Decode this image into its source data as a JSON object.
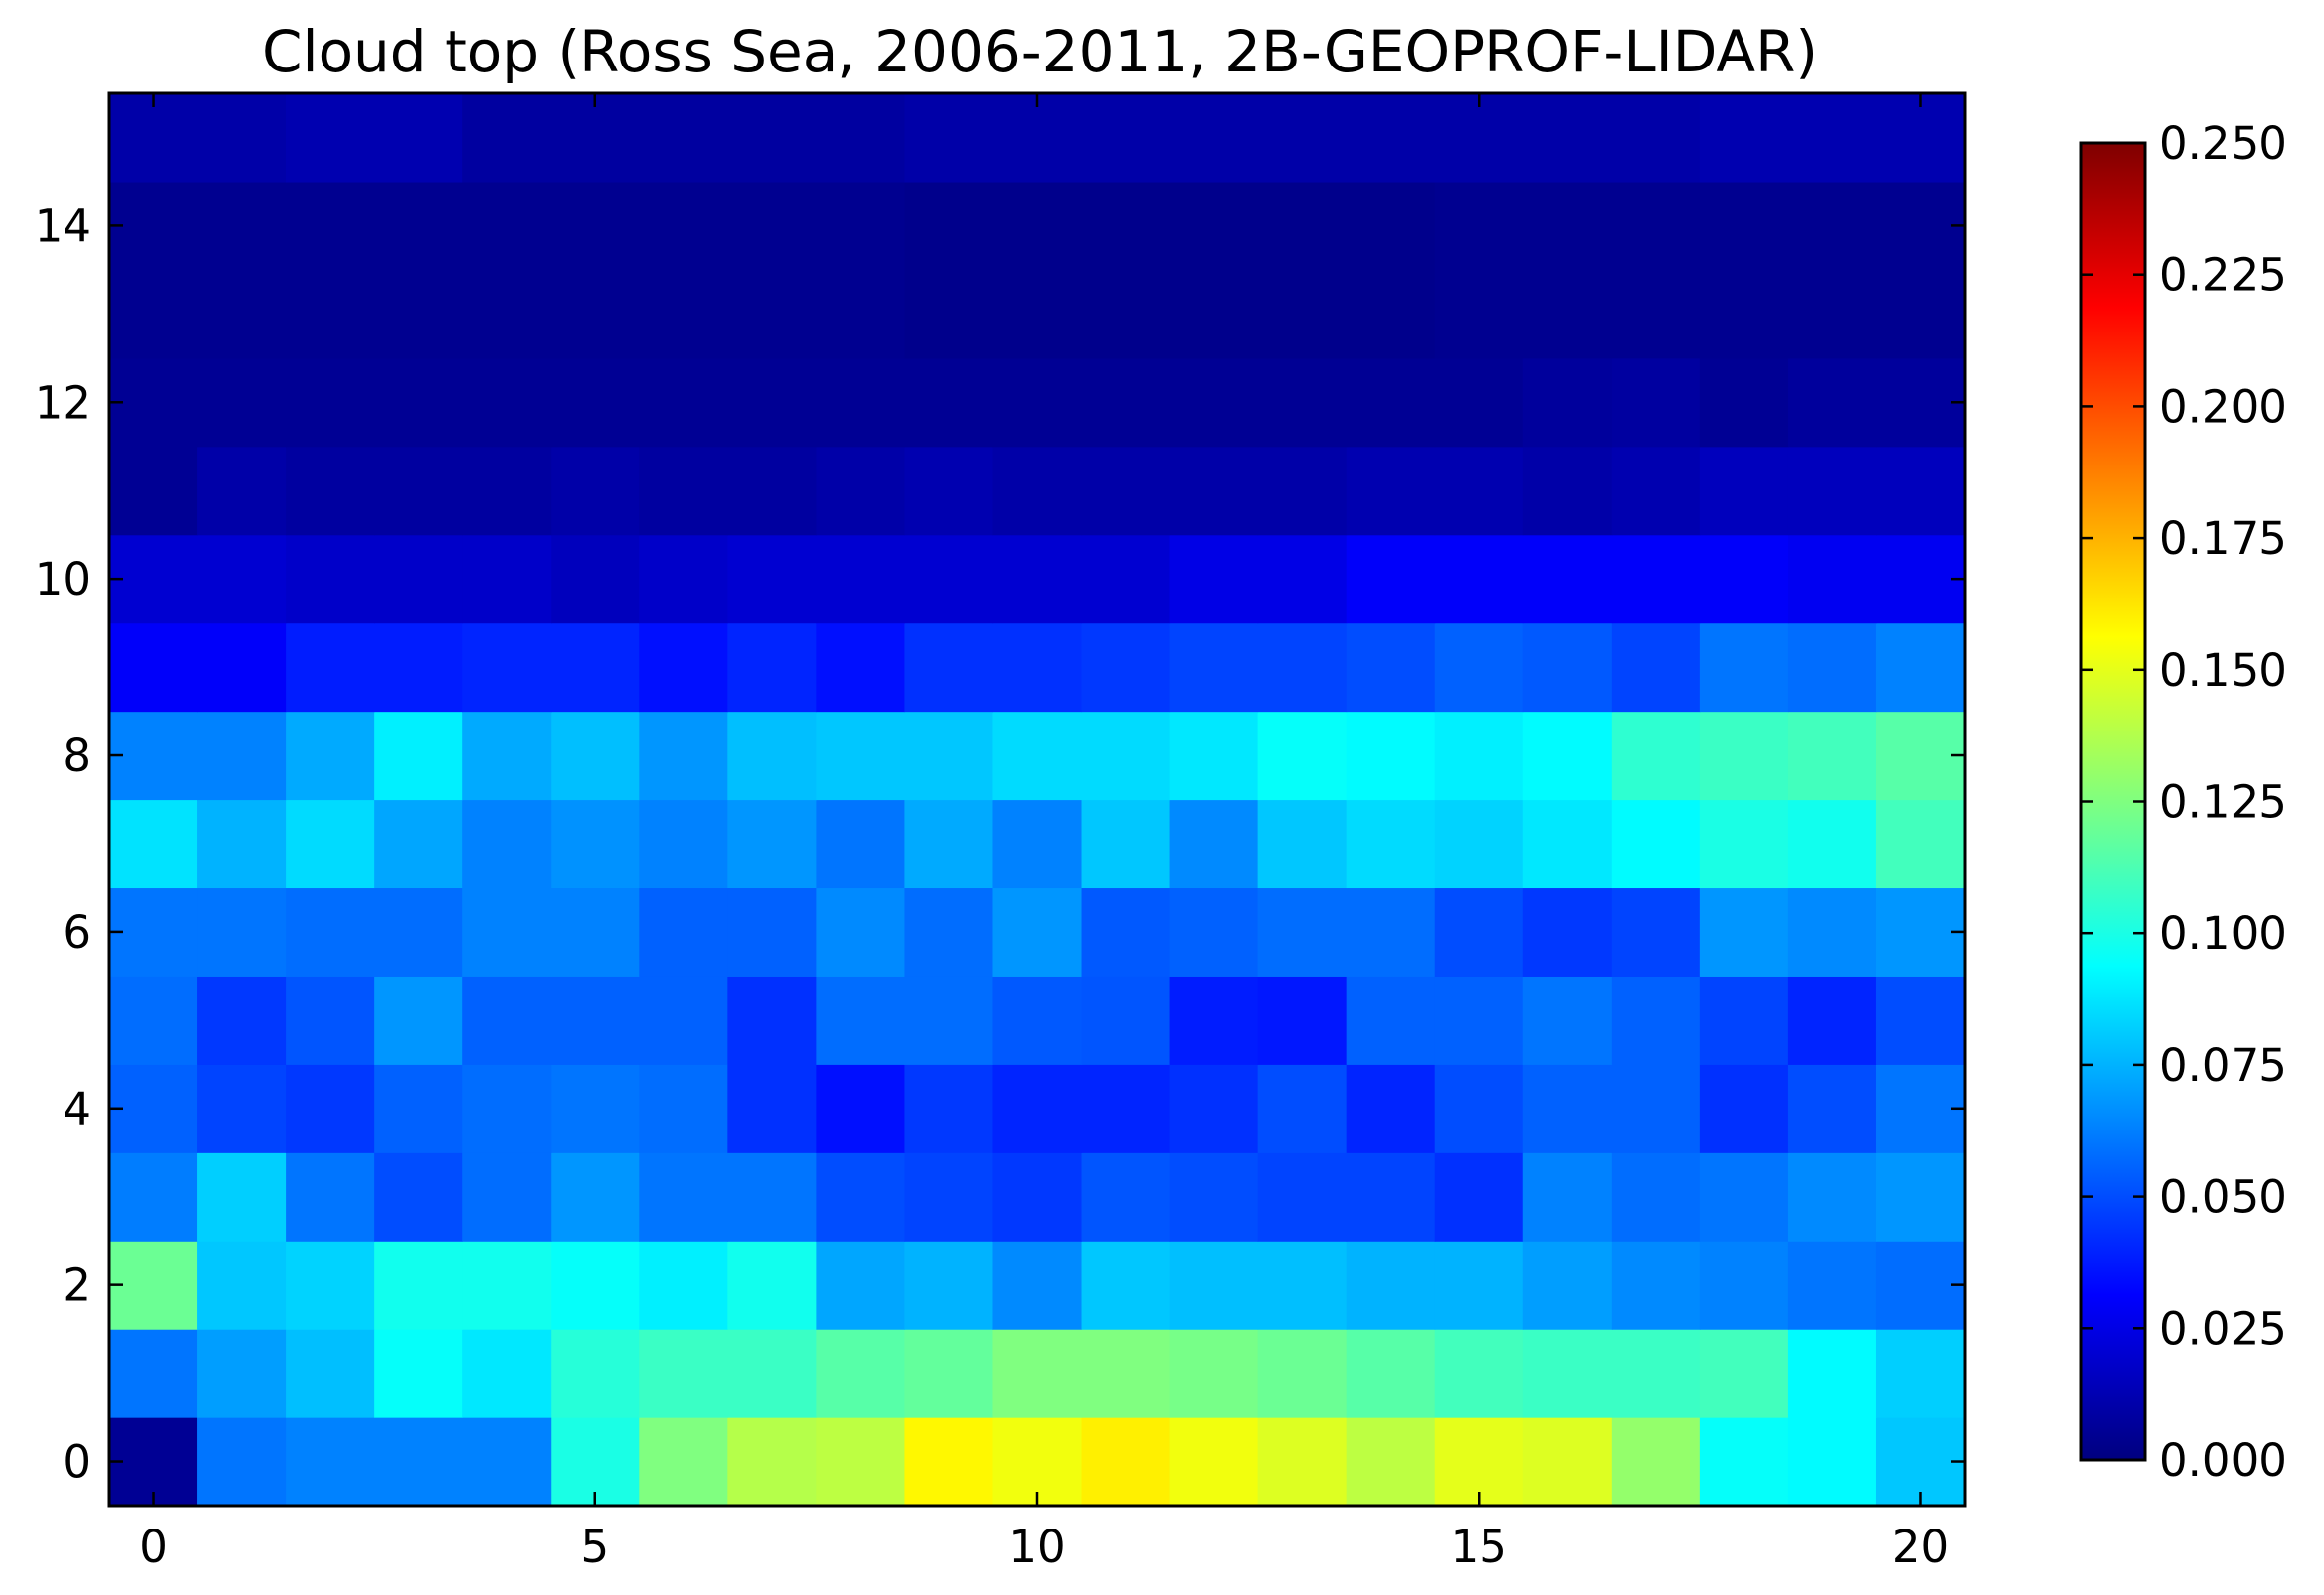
{
  "chart_data": {
    "type": "heatmap",
    "title": "Cloud top (Ross Sea, 2006-2011, 2B-GEOPROF-LIDAR)",
    "xlabel": "",
    "ylabel": "",
    "xlim": [
      -0.5,
      20.5
    ],
    "ylim": [
      -0.5,
      15.5
    ],
    "x_ticks": [
      0,
      5,
      10,
      15,
      20
    ],
    "y_ticks": [
      0,
      2,
      4,
      6,
      8,
      10,
      12,
      14
    ],
    "colormap": "jet",
    "colorbar": {
      "vmin": 0.0,
      "vmax": 0.25,
      "ticks": [
        "0.000",
        "0.025",
        "0.050",
        "0.075",
        "0.100",
        "0.125",
        "0.150",
        "0.175",
        "0.200",
        "0.225",
        "0.250"
      ]
    },
    "row_index": "rows[0] is y=0 (bottom) ... rows[15] is y=15 (top); each row has 21 columns x=0..20",
    "rows": [
      [
        0.005,
        0.06,
        0.063,
        0.063,
        0.063,
        0.1,
        0.125,
        0.138,
        0.14,
        0.158,
        0.153,
        0.16,
        0.153,
        0.148,
        0.14,
        0.15,
        0.148,
        0.13,
        0.095,
        0.093,
        0.08
      ],
      [
        0.06,
        0.07,
        0.078,
        0.095,
        0.088,
        0.103,
        0.108,
        0.108,
        0.115,
        0.118,
        0.125,
        0.125,
        0.123,
        0.12,
        0.115,
        0.11,
        0.108,
        0.108,
        0.11,
        0.093,
        0.082
      ],
      [
        0.12,
        0.08,
        0.083,
        0.098,
        0.098,
        0.095,
        0.09,
        0.098,
        0.072,
        0.075,
        0.065,
        0.08,
        0.078,
        0.078,
        0.075,
        0.075,
        0.07,
        0.065,
        0.063,
        0.06,
        0.058
      ],
      [
        0.062,
        0.082,
        0.06,
        0.05,
        0.058,
        0.068,
        0.06,
        0.06,
        0.05,
        0.048,
        0.045,
        0.052,
        0.05,
        0.048,
        0.048,
        0.043,
        0.063,
        0.058,
        0.06,
        0.065,
        0.068
      ],
      [
        0.055,
        0.048,
        0.045,
        0.055,
        0.058,
        0.06,
        0.058,
        0.043,
        0.035,
        0.045,
        0.04,
        0.04,
        0.043,
        0.05,
        0.04,
        0.05,
        0.055,
        0.055,
        0.043,
        0.05,
        0.06
      ],
      [
        0.058,
        0.045,
        0.052,
        0.068,
        0.055,
        0.055,
        0.055,
        0.043,
        0.058,
        0.058,
        0.053,
        0.052,
        0.038,
        0.037,
        0.055,
        0.055,
        0.06,
        0.055,
        0.048,
        0.04,
        0.05
      ],
      [
        0.06,
        0.06,
        0.058,
        0.058,
        0.063,
        0.063,
        0.055,
        0.055,
        0.065,
        0.058,
        0.068,
        0.053,
        0.055,
        0.058,
        0.058,
        0.05,
        0.045,
        0.048,
        0.068,
        0.065,
        0.068
      ],
      [
        0.087,
        0.075,
        0.085,
        0.072,
        0.063,
        0.067,
        0.063,
        0.068,
        0.06,
        0.073,
        0.063,
        0.08,
        0.065,
        0.08,
        0.085,
        0.083,
        0.088,
        0.093,
        0.1,
        0.098,
        0.11
      ],
      [
        0.063,
        0.063,
        0.073,
        0.09,
        0.073,
        0.078,
        0.068,
        0.078,
        0.08,
        0.08,
        0.085,
        0.085,
        0.088,
        0.095,
        0.093,
        0.09,
        0.093,
        0.105,
        0.108,
        0.11,
        0.115
      ],
      [
        0.03,
        0.03,
        0.038,
        0.038,
        0.04,
        0.04,
        0.035,
        0.04,
        0.035,
        0.043,
        0.043,
        0.045,
        0.048,
        0.048,
        0.05,
        0.055,
        0.053,
        0.048,
        0.06,
        0.058,
        0.063
      ],
      [
        0.02,
        0.02,
        0.018,
        0.018,
        0.018,
        0.015,
        0.018,
        0.02,
        0.02,
        0.02,
        0.02,
        0.02,
        0.025,
        0.025,
        0.03,
        0.03,
        0.03,
        0.03,
        0.03,
        0.028,
        0.028
      ],
      [
        0.005,
        0.01,
        0.008,
        0.008,
        0.008,
        0.01,
        0.008,
        0.008,
        0.01,
        0.012,
        0.01,
        0.01,
        0.01,
        0.01,
        0.012,
        0.012,
        0.01,
        0.012,
        0.015,
        0.015,
        0.015
      ],
      [
        0.005,
        0.005,
        0.005,
        0.005,
        0.005,
        0.005,
        0.005,
        0.005,
        0.005,
        0.005,
        0.005,
        0.005,
        0.005,
        0.005,
        0.005,
        0.005,
        0.007,
        0.008,
        0.005,
        0.007,
        0.007
      ],
      [
        0.004,
        0.004,
        0.004,
        0.004,
        0.004,
        0.004,
        0.004,
        0.004,
        0.004,
        0.003,
        0.003,
        0.003,
        0.003,
        0.003,
        0.003,
        0.004,
        0.004,
        0.004,
        0.004,
        0.004,
        0.004
      ],
      [
        0.004,
        0.004,
        0.004,
        0.004,
        0.004,
        0.004,
        0.004,
        0.004,
        0.004,
        0.003,
        0.003,
        0.003,
        0.003,
        0.003,
        0.003,
        0.004,
        0.004,
        0.004,
        0.004,
        0.004,
        0.004
      ],
      [
        0.01,
        0.01,
        0.012,
        0.012,
        0.008,
        0.008,
        0.008,
        0.008,
        0.008,
        0.01,
        0.01,
        0.01,
        0.01,
        0.01,
        0.01,
        0.01,
        0.01,
        0.01,
        0.012,
        0.012,
        0.012
      ]
    ]
  }
}
